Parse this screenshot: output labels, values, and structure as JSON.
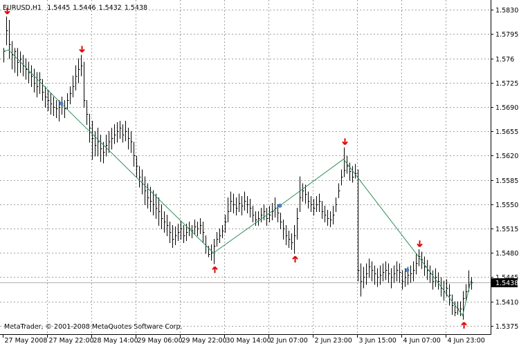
{
  "chart_data": {
    "type": "ohlc",
    "symbol": "EURUSD,H1",
    "header_values": [
      1.5445,
      1.5446,
      1.5432,
      1.5438
    ],
    "footer": "MetaTrader, © 2001-2008 MetaQuotes Software Corp.",
    "current_price": 1.5438,
    "color": "#000000",
    "ylim": [
      1.5363,
      1.5844
    ],
    "yticks": [
      {
        "value": 1.583,
        "label": "1.5830"
      },
      1.5795,
      1.576,
      1.5725,
      {
        "value": 1.569,
        "label": "1.5690"
      },
      1.5655,
      {
        "value": 1.562,
        "label": "1.5620"
      },
      1.5585,
      {
        "value": 1.555,
        "label": "1.5550"
      },
      1.5515,
      {
        "value": 1.548,
        "label": "1.5480"
      },
      1.5445,
      {
        "value": 1.541,
        "label": "1.5410"
      },
      1.5375
    ],
    "xticks": [
      {
        "value": 0,
        "label": "27 May 2008"
      },
      {
        "value": 16,
        "label": "27 May 22:00"
      },
      {
        "value": 32,
        "label": "28 May 14:00"
      },
      {
        "value": 48,
        "label": "29 May 06:00"
      },
      {
        "value": 64,
        "label": "29 May 22:00"
      },
      {
        "value": 80,
        "label": "30 May 14:00"
      },
      {
        "value": 96,
        "label": "2 Jun 07:00"
      },
      {
        "value": 112,
        "label": "2 Jun 23:00"
      },
      {
        "value": 128,
        "label": "3 Jun 15:00"
      },
      {
        "value": 144,
        "label": "4 Jun 07:00"
      },
      {
        "value": 160,
        "label": "4 Jun 23:00"
      }
    ],
    "grid": true,
    "high": [
      1.5775,
      1.582,
      1.5815,
      1.5785,
      1.5775,
      1.5775,
      1.577,
      1.5765,
      1.576,
      1.5755,
      1.575,
      1.5745,
      1.574,
      1.574,
      1.573,
      1.572,
      1.5715,
      1.571,
      1.5705,
      1.57,
      1.57,
      1.5705,
      1.57,
      1.571,
      1.572,
      1.5735,
      1.575,
      1.576,
      1.5765,
      1.5755,
      1.57,
      1.568,
      1.567,
      1.5655,
      1.566,
      1.565,
      1.564,
      1.565,
      1.5655,
      1.566,
      1.5665,
      1.5668,
      1.567,
      1.5665,
      1.567,
      1.566,
      1.5655,
      1.564,
      1.562,
      1.5605,
      1.56,
      1.559,
      1.558,
      1.5575,
      1.557,
      1.5565,
      1.556,
      1.555,
      1.554,
      1.5535,
      1.5525,
      1.552,
      1.5518,
      1.5522,
      1.5525,
      1.552,
      1.5522,
      1.5525,
      1.552,
      1.5528,
      1.5525,
      1.553,
      1.5525,
      1.5505,
      1.549,
      1.5492,
      1.55,
      1.551,
      1.5515,
      1.552,
      1.5535,
      1.556,
      1.5568,
      1.5565,
      1.556,
      1.5565,
      1.5562,
      1.5568,
      1.5562,
      1.5558,
      1.5548,
      1.554,
      1.554,
      1.5545,
      1.555,
      1.5545,
      1.5548,
      1.5552,
      1.556,
      1.555,
      1.5538,
      1.5528,
      1.552,
      1.5512,
      1.5508,
      1.552,
      1.5545,
      1.559,
      1.558,
      1.5578,
      1.5568,
      1.5562,
      1.5558,
      1.5562,
      1.5565,
      1.5555,
      1.5548,
      1.5542,
      1.554,
      1.5548,
      1.556,
      1.558,
      1.56,
      1.5632,
      1.562,
      1.561,
      1.5605,
      1.5608,
      1.56,
      1.5465,
      1.546,
      1.5465,
      1.5472,
      1.5468,
      1.5462,
      1.5458,
      1.5462,
      1.5465,
      1.5468,
      1.5465,
      1.5458,
      1.5462,
      1.5468,
      1.5465,
      1.5455,
      1.5458,
      1.546,
      1.5462,
      1.5468,
      1.548,
      1.5485,
      1.5482,
      1.5475,
      1.547,
      1.5462,
      1.5455,
      1.5458,
      1.5452,
      1.5445,
      1.544,
      1.5442,
      1.5435,
      1.542,
      1.541,
      1.541,
      1.541,
      1.5425,
      1.5435,
      1.5455,
      1.5445
    ],
    "low": [
      1.5755,
      1.578,
      1.576,
      1.5745,
      1.574,
      1.5735,
      1.574,
      1.5735,
      1.573,
      1.5725,
      1.572,
      1.5712,
      1.5705,
      1.571,
      1.57,
      1.569,
      1.5685,
      1.568,
      1.5678,
      1.5675,
      1.567,
      1.568,
      1.5675,
      1.5688,
      1.5695,
      1.5705,
      1.5715,
      1.5725,
      1.5735,
      1.569,
      1.5665,
      1.564,
      1.5615,
      1.562,
      1.562,
      1.5612,
      1.561,
      1.562,
      1.5625,
      1.563,
      1.5638,
      1.564,
      1.5645,
      1.564,
      1.5642,
      1.563,
      1.5625,
      1.5605,
      1.559,
      1.5575,
      1.5565,
      1.555,
      1.5545,
      1.554,
      1.5535,
      1.553,
      1.552,
      1.5515,
      1.551,
      1.5505,
      1.5495,
      1.5488,
      1.5492,
      1.5498,
      1.55,
      1.5495,
      1.5498,
      1.5505,
      1.5502,
      1.5508,
      1.5505,
      1.5508,
      1.5495,
      1.548,
      1.5475,
      1.547,
      1.5465,
      1.549,
      1.5495,
      1.5502,
      1.551,
      1.5525,
      1.554,
      1.5538,
      1.5535,
      1.554,
      1.5535,
      1.5542,
      1.5538,
      1.5532,
      1.5525,
      1.552,
      1.552,
      1.5525,
      1.5528,
      1.552,
      1.5525,
      1.5528,
      1.5532,
      1.5525,
      1.5515,
      1.55,
      1.5492,
      1.5488,
      1.5485,
      1.548,
      1.55,
      1.554,
      1.5555,
      1.5552,
      1.5545,
      1.554,
      1.5535,
      1.554,
      1.554,
      1.553,
      1.5525,
      1.552,
      1.5518,
      1.5522,
      1.554,
      1.556,
      1.5578,
      1.559,
      1.5595,
      1.5585,
      1.5582,
      1.5588,
      1.544,
      1.5418,
      1.543,
      1.5435,
      1.5445,
      1.544,
      1.5435,
      1.5432,
      1.5435,
      1.544,
      1.5442,
      1.5438,
      1.543,
      1.5438,
      1.544,
      1.5438,
      1.5428,
      1.5432,
      1.5435,
      1.5438,
      1.544,
      1.545,
      1.5462,
      1.5458,
      1.5448,
      1.5442,
      1.5438,
      1.5428,
      1.5432,
      1.5428,
      1.5418,
      1.5412,
      1.5418,
      1.5405,
      1.5392,
      1.539,
      1.5392,
      1.539,
      1.5385,
      1.541,
      1.5425,
      1.5428
    ],
    "close": [
      1.577,
      1.58,
      1.578,
      1.5765,
      1.577,
      1.5755,
      1.576,
      1.575,
      1.5745,
      1.574,
      1.5735,
      1.5725,
      1.572,
      1.573,
      1.5712,
      1.5705,
      1.57,
      1.5695,
      1.569,
      1.5688,
      1.569,
      1.5695,
      1.5688,
      1.57,
      1.571,
      1.572,
      1.5735,
      1.5745,
      1.575,
      1.57,
      1.568,
      1.566,
      1.5645,
      1.5635,
      1.564,
      1.563,
      1.5625,
      1.5635,
      1.564,
      1.5645,
      1.565,
      1.5655,
      1.566,
      1.565,
      1.5655,
      1.5645,
      1.564,
      1.562,
      1.5605,
      1.559,
      1.558,
      1.557,
      1.556,
      1.5555,
      1.555,
      1.5545,
      1.554,
      1.553,
      1.5525,
      1.552,
      1.551,
      1.55,
      1.5505,
      1.551,
      1.5515,
      1.5505,
      1.551,
      1.5515,
      1.5512,
      1.5518,
      1.5515,
      1.552,
      1.551,
      1.549,
      1.5478,
      1.548,
      1.549,
      1.55,
      1.5505,
      1.5512,
      1.5525,
      1.554,
      1.5555,
      1.555,
      1.5545,
      1.5552,
      1.5548,
      1.5555,
      1.555,
      1.5545,
      1.5535,
      1.5528,
      1.553,
      1.5535,
      1.554,
      1.553,
      1.5535,
      1.554,
      1.5545,
      1.5538,
      1.5525,
      1.5515,
      1.5505,
      1.55,
      1.5495,
      1.5505,
      1.553,
      1.556,
      1.557,
      1.5565,
      1.5555,
      1.555,
      1.5545,
      1.555,
      1.5555,
      1.554,
      1.5535,
      1.553,
      1.5528,
      1.5535,
      1.555,
      1.557,
      1.559,
      1.56,
      1.5605,
      1.5598,
      1.559,
      1.5595,
      1.5455,
      1.544,
      1.5445,
      1.545,
      1.546,
      1.5455,
      1.545,
      1.5445,
      1.5448,
      1.5452,
      1.5455,
      1.545,
      1.5445,
      1.545,
      1.5455,
      1.5452,
      1.544,
      1.5445,
      1.5448,
      1.545,
      1.5455,
      1.5465,
      1.5475,
      1.547,
      1.546,
      1.5455,
      1.545,
      1.544,
      1.5445,
      1.544,
      1.543,
      1.5425,
      1.543,
      1.542,
      1.5405,
      1.5395,
      1.54,
      1.54,
      1.5415,
      1.5425,
      1.5435,
      1.5438
    ],
    "zigzag": {
      "color": "#2e8b57",
      "bars": [
        0,
        2,
        21,
        76,
        100,
        123,
        150,
        166,
        169
      ],
      "prices": [
        1.577,
        1.5772,
        1.5695,
        1.548,
        1.5548,
        1.5615,
        1.5475,
        1.539,
        1.544
      ]
    },
    "dots": {
      "color": "#4f81bd",
      "bars": [
        21,
        100,
        146
      ],
      "prices": [
        1.5695,
        1.5548,
        1.5455
      ]
    },
    "arrow_color": "#e00000",
    "fractals_down": [
      1,
      28,
      123,
      150
    ],
    "fractals_up": [
      76,
      105,
      166
    ]
  }
}
